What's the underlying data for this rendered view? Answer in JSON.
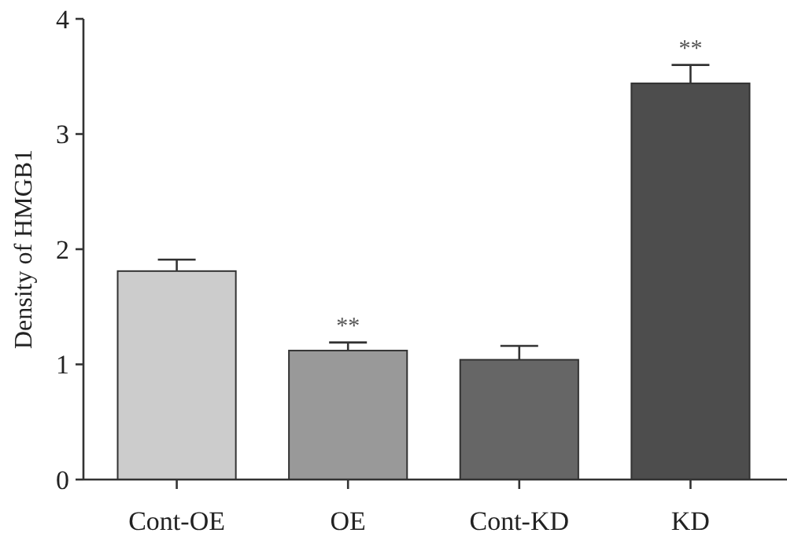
{
  "chart_data": {
    "type": "bar",
    "ylabel": "Density of HMGB1",
    "categories": [
      "Cont-OE",
      "OE",
      "Cont-KD",
      "KD"
    ],
    "values": [
      1.81,
      1.12,
      1.04,
      3.44
    ],
    "errors": [
      0.1,
      0.07,
      0.12,
      0.16
    ],
    "colors": [
      "#cccccc",
      "#999999",
      "#666666",
      "#4d4d4d"
    ],
    "ylim": [
      0,
      4
    ],
    "yticks": [
      0,
      1,
      2,
      3,
      4
    ],
    "annotations": [
      {
        "text": "**",
        "x": "OE",
        "y": 1.19
      },
      {
        "text": "**",
        "x": "KD",
        "y": 3.6
      }
    ]
  }
}
